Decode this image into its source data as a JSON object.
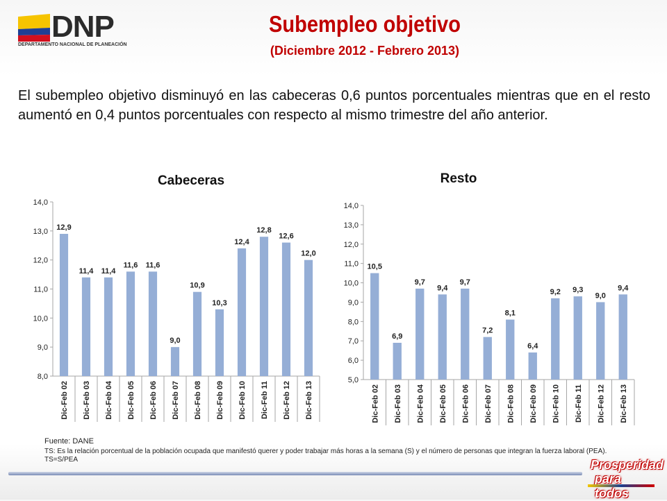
{
  "header": {
    "logo_text": "DNP",
    "logo_subtitle": "DEPARTAMENTO NACIONAL DE PLANEACIÓN",
    "title": "Subempleo objetivo",
    "subtitle": "(Diciembre 2012 - Febrero 2013)"
  },
  "intro": "El subempleo objetivo disminuyó en las cabeceras 0,6 puntos porcentuales mientras que en el resto aumentó en 0,4 puntos porcentuales con respecto al mismo trimestre del año anterior.",
  "colors": {
    "bar": "#95aed6",
    "title": "#c00000",
    "axis": "#a6a6a6"
  },
  "chart_data": [
    {
      "type": "bar",
      "title": "Cabeceras",
      "categories": [
        "Dic-Feb 02",
        "Dic-Feb 03",
        "Dic-Feb 04",
        "Dic-Feb 05",
        "Dic-Feb 06",
        "Dic-Feb 07",
        "Dic-Feb 08",
        "Dic-Feb 09",
        "Dic-Feb 10",
        "Dic-Feb 11",
        "Dic-Feb 12",
        "Dic-Feb 13"
      ],
      "values": [
        12.9,
        11.4,
        11.4,
        11.6,
        11.6,
        9.0,
        10.9,
        10.3,
        12.4,
        12.8,
        12.6,
        12.0
      ],
      "value_labels": [
        "12,9",
        "11,4",
        "11,4",
        "11,6",
        "11,6",
        "9,0",
        "10,9",
        "10,3",
        "12,4",
        "12,8",
        "12,6",
        "12,0"
      ],
      "ylim": [
        8.0,
        14.0
      ],
      "yticks": [
        8.0,
        9.0,
        10.0,
        11.0,
        12.0,
        13.0,
        14.0
      ],
      "ytick_labels": [
        "8,0",
        "9,0",
        "10,0",
        "11,0",
        "12,0",
        "13,0",
        "14,0"
      ],
      "grid": false
    },
    {
      "type": "bar",
      "title": "Resto",
      "categories": [
        "Dic-Feb 02",
        "Dic-Feb 03",
        "Dic-Feb 04",
        "Dic-Feb 05",
        "Dic-Feb 06",
        "Dic-Feb 07",
        "Dic-Feb 08",
        "Dic-Feb 09",
        "Dic-Feb 10",
        "Dic-Feb 11",
        "Dic-Feb 12",
        "Dic-Feb 13"
      ],
      "values": [
        10.5,
        6.9,
        9.7,
        9.4,
        9.7,
        7.2,
        8.1,
        6.4,
        9.2,
        9.3,
        9.0,
        9.4
      ],
      "value_labels": [
        "10,5",
        "6,9",
        "9,7",
        "9,4",
        "9,7",
        "7,2",
        "8,1",
        "6,4",
        "9,2",
        "9,3",
        "9,0",
        "9,4"
      ],
      "ylim": [
        5.0,
        14.0
      ],
      "yticks": [
        5.0,
        6.0,
        7.0,
        8.0,
        9.0,
        10.0,
        11.0,
        12.0,
        13.0,
        14.0
      ],
      "ytick_labels": [
        "5,0",
        "6,0",
        "7,0",
        "8,0",
        "9,0",
        "10,0",
        "11,0",
        "12,0",
        "13,0",
        "14,0"
      ],
      "grid": false
    }
  ],
  "footer": {
    "source": "Fuente: DANE",
    "note": "TS:  Es la relación porcentual de la población ocupada que manifestó querer y poder trabajar más horas a la semana (S) y el número de personas que integran la fuerza laboral (PEA). TS=S/PEA"
  },
  "brand": {
    "line1": "Prosperidad",
    "line2": "para todos"
  }
}
